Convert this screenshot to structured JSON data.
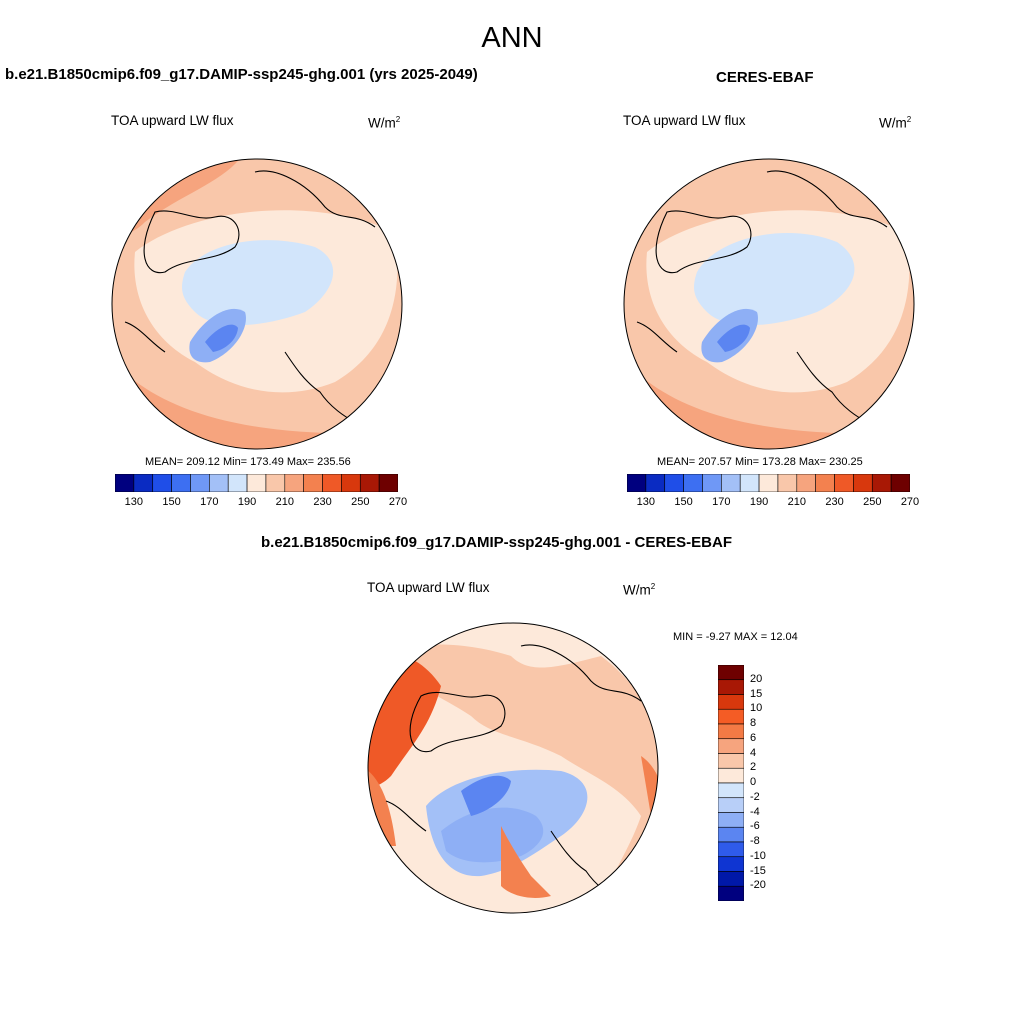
{
  "page_title": "ANN",
  "panels": [
    {
      "title": "b.e21.B1850cmip6.f09_g17.DAMIP-ssp245-ghg.001 (yrs 2025-2049)",
      "variable": "TOA upward LW flux",
      "units": "W/m",
      "units_exp": "2",
      "stats": "MEAN= 209.12  Min= 173.49  Max= 235.56"
    },
    {
      "title": "CERES-EBAF",
      "variable": "TOA upward LW flux",
      "units": "W/m",
      "units_exp": "2",
      "stats": "MEAN= 207.57  Min= 173.28  Max= 230.25"
    },
    {
      "title": "b.e21.B1850cmip6.f09_g17.DAMIP-ssp245-ghg.001 - CERES-EBAF",
      "variable": "TOA upward LW flux",
      "units": "W/m",
      "units_exp": "2",
      "stats": "MIN =  -9.27 MAX =  12.04"
    }
  ],
  "abs_colorbar": {
    "colors": [
      "#00007f",
      "#0a2bc2",
      "#1f4ee8",
      "#3d6ff2",
      "#6f98f6",
      "#a3c0f7",
      "#d2e5fb",
      "#fde9da",
      "#f9c7aa",
      "#f6a47e",
      "#f3814f",
      "#ef5927",
      "#d8380d",
      "#a81805",
      "#6e0000"
    ],
    "ticks": [
      "130",
      "150",
      "170",
      "190",
      "210",
      "230",
      "250",
      "270"
    ]
  },
  "diff_colorbar": {
    "colors": [
      "#6e0000",
      "#a81805",
      "#d8380d",
      "#f45c25",
      "#f37a45",
      "#f6a47e",
      "#f9c7aa",
      "#fde9da",
      "#d2e5fb",
      "#b8cff8",
      "#8eaff5",
      "#5b85f1",
      "#2f5bea",
      "#0f35d2",
      "#0018a8",
      "#00007f"
    ],
    "ticks": [
      "20",
      "15",
      "10",
      "8",
      "6",
      "4",
      "2",
      "0",
      "-2",
      "-4",
      "-6",
      "-8",
      "-10",
      "-15",
      "-20"
    ]
  },
  "map_palette": {
    "deep_blue": "#5b85f1",
    "mid_blue": "#8eaff5",
    "light_blue": "#d2e5fb",
    "cream": "#fde9da",
    "peach": "#f9c7aa",
    "salmon": "#f6a47e",
    "orange": "#f3814f",
    "red_orange": "#ef5927"
  }
}
